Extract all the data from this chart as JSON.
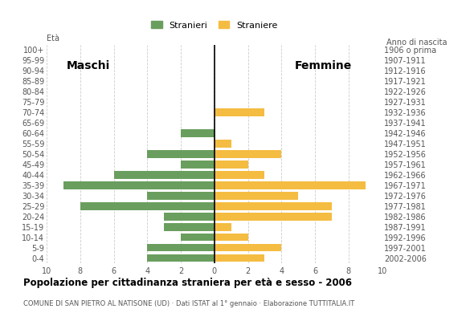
{
  "age_groups": [
    "0-4",
    "5-9",
    "10-14",
    "15-19",
    "20-24",
    "25-29",
    "30-34",
    "35-39",
    "40-44",
    "45-49",
    "50-54",
    "55-59",
    "60-64",
    "65-69",
    "70-74",
    "75-79",
    "80-84",
    "85-89",
    "90-94",
    "95-99",
    "100+"
  ],
  "birth_years": [
    "2002-2006",
    "1997-2001",
    "1992-1996",
    "1987-1991",
    "1982-1986",
    "1977-1981",
    "1972-1976",
    "1967-1971",
    "1962-1966",
    "1957-1961",
    "1952-1956",
    "1947-1951",
    "1942-1946",
    "1937-1941",
    "1932-1936",
    "1927-1931",
    "1922-1926",
    "1917-1921",
    "1912-1916",
    "1907-1911",
    "1906 o prima"
  ],
  "males": [
    4,
    4,
    2,
    3,
    3,
    8,
    4,
    9,
    6,
    2,
    4,
    0,
    2,
    0,
    0,
    0,
    0,
    0,
    0,
    0,
    0
  ],
  "females": [
    3,
    4,
    2,
    1,
    7,
    7,
    5,
    9,
    3,
    2,
    4,
    1,
    0,
    0,
    3,
    0,
    0,
    0,
    0,
    0,
    0
  ],
  "male_color": "#6a9e5e",
  "female_color": "#f5bc42",
  "title": "Popolazione per cittadinanza straniera per età e sesso - 2006",
  "subtitle": "COMUNE DI SAN PIETRO AL NATISONE (UD) · Dati ISTAT al 1° gennaio · Elaborazione TUTTITALIA.IT",
  "legend_male": "Stranieri",
  "legend_female": "Straniere",
  "label_maschi": "Maschi",
  "label_femmine": "Femmine",
  "label_eta": "Età",
  "label_anno": "Anno di nascita",
  "xmax": 10,
  "background_color": "#ffffff",
  "grid_color": "#cccccc"
}
